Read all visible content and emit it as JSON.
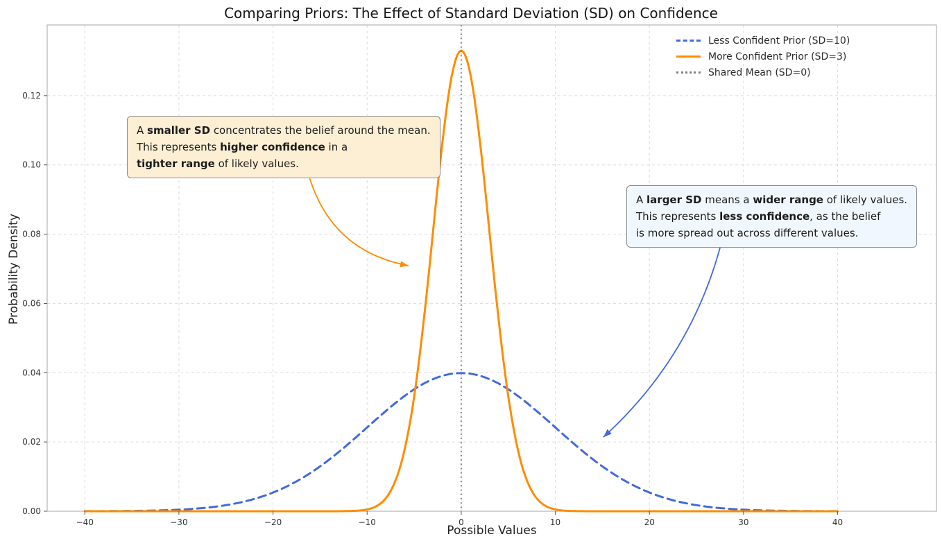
{
  "chart_data": {
    "type": "line",
    "title": "Comparing Priors: The Effect of Standard Deviation (SD) on Confidence",
    "xlabel": "Possible Values",
    "ylabel": "Probability Density",
    "xlim": [
      -44,
      50.5
    ],
    "ylim": [
      0,
      0.1404
    ],
    "grid": true,
    "legend_position": "upper right",
    "xticks": [
      -40,
      -30,
      -20,
      -10,
      0,
      10,
      20,
      30,
      40
    ],
    "xtick_labels": [
      "−40",
      "−30",
      "−20",
      "−10",
      "0",
      "10",
      "20",
      "30",
      "40"
    ],
    "yticks": [
      0,
      0.02,
      0.04,
      0.06,
      0.08,
      0.1,
      0.12
    ],
    "ytick_labels": [
      "0.00",
      "0.02",
      "0.04",
      "0.06",
      "0.08",
      "0.10",
      "0.12"
    ],
    "series": [
      {
        "name": "Less Confident Prior (SD=10)",
        "distribution": "gaussian",
        "mean": 0,
        "sd": 10,
        "peak_density": 0.0399,
        "x_range": [
          -40,
          40
        ],
        "color": "#4169E1",
        "line_style": "dashed",
        "line_width": 3
      },
      {
        "name": "More Confident Prior (SD=3)",
        "distribution": "gaussian",
        "mean": 0,
        "sd": 3,
        "peak_density": 0.133,
        "x_range": [
          -40,
          40
        ],
        "color": "#FF8C00",
        "line_style": "solid",
        "line_width": 3
      },
      {
        "name": "Shared Mean (SD=0)",
        "distribution": "vline",
        "x": 0,
        "color": "#7f7f7f",
        "line_style": "dotted",
        "line_width": 2
      }
    ],
    "arrows": [
      {
        "target_series": "More Confident Prior (SD=3)",
        "color": "#FF8C00",
        "xy": [
          -5.6,
          0.0709
        ],
        "xytext": [
          -16.1,
          0.0961
        ],
        "rad": 0.3
      },
      {
        "target_series": "Less Confident Prior (SD=10)",
        "color": "#4169E1",
        "xy": [
          15.1,
          0.0214
        ],
        "xytext": [
          27.7,
          0.0781
        ],
        "rad": -0.15
      }
    ]
  },
  "callouts": {
    "smaller_sd": {
      "bg": "#fdefd4",
      "border": "#8a8a8a",
      "lines": [
        [
          {
            "t": "A ",
            "b": false
          },
          {
            "t": "smaller SD",
            "b": true
          },
          {
            "t": " concentrates the belief around the mean.",
            "b": false
          }
        ],
        [
          {
            "t": "This represents ",
            "b": false
          },
          {
            "t": "higher confidence",
            "b": true
          },
          {
            "t": " in a",
            "b": false
          }
        ],
        [
          {
            "t": "tighter range",
            "b": true
          },
          {
            "t": " of likely values.",
            "b": false
          }
        ]
      ]
    },
    "larger_sd": {
      "bg": "#f1f7fe",
      "border": "#8a8a8a",
      "lines": [
        [
          {
            "t": "A ",
            "b": false
          },
          {
            "t": "larger SD",
            "b": true
          },
          {
            "t": " means a ",
            "b": false
          },
          {
            "t": "wider range",
            "b": true
          },
          {
            "t": " of likely values.",
            "b": false
          }
        ],
        [
          {
            "t": "This represents ",
            "b": false
          },
          {
            "t": "less confidence",
            "b": true
          },
          {
            "t": ", as the belief",
            "b": false
          }
        ],
        [
          {
            "t": "is more spread out across different values.",
            "b": false
          }
        ]
      ]
    }
  }
}
